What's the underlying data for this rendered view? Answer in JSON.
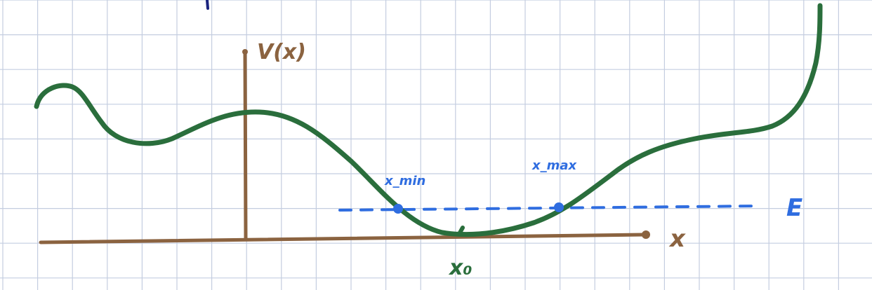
{
  "labels": {
    "y_axis": "V(x)",
    "x_axis": "x",
    "energy": "E",
    "x_min": "x_min",
    "x_max": "x_max",
    "x_zero": "x₀"
  },
  "colors": {
    "grid": "#c4cde0",
    "axes": "#8b6340",
    "curve": "#2a6e3c",
    "energy": "#2f6de0",
    "ink": "#1a237e"
  }
}
